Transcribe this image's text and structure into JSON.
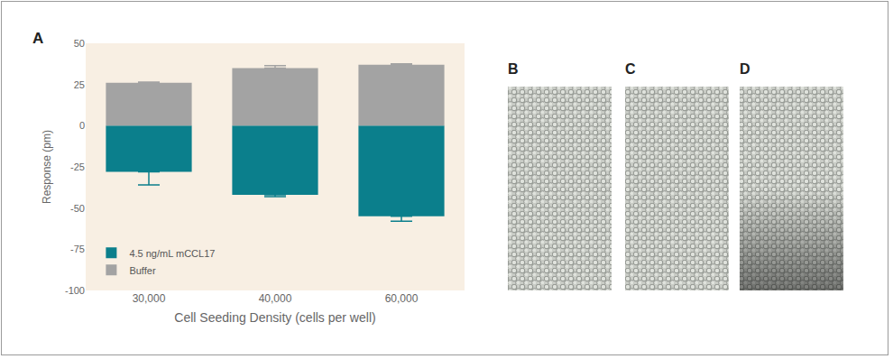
{
  "chart_data": {
    "type": "bar",
    "panel_label": "A",
    "categories": [
      "30,000",
      "40,000",
      "60,000"
    ],
    "series": [
      {
        "name": "4.5 ng/mL mCCL17",
        "color": "#0b7f8c",
        "values": [
          -28,
          -42,
          -55
        ],
        "errors": [
          8,
          1,
          3
        ]
      },
      {
        "name": "Buffer",
        "color": "#a3a3a3",
        "values": [
          26,
          35,
          37
        ],
        "errors": [
          0.5,
          1.5,
          0.5
        ]
      }
    ],
    "xlabel": "Cell Seeding Density (cells per well)",
    "ylabel": "Response (pm)",
    "ylim": [
      -100,
      50
    ],
    "yticks": [
      -100,
      -75,
      -50,
      -25,
      0,
      25,
      50
    ],
    "grid": false,
    "legend": "lower left"
  },
  "image_panels": [
    "B",
    "C",
    "D"
  ]
}
